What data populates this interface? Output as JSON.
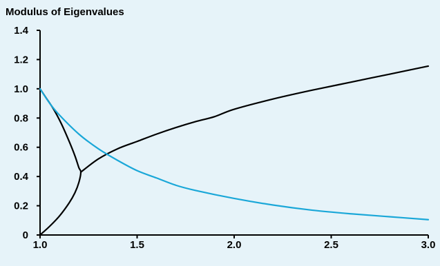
{
  "chart_data": {
    "type": "line",
    "title": "Modulus of Eigenvalues",
    "xlabel": "",
    "ylabel": "",
    "xlim": [
      1.0,
      3.0
    ],
    "ylim": [
      0,
      1.4
    ],
    "x_ticks": [
      1.0,
      1.5,
      2.0,
      2.5,
      3.0
    ],
    "x_tick_labels": [
      "1.0",
      "1.5",
      "2.0",
      "2.5",
      "3.0"
    ],
    "y_ticks": [
      0,
      0.2,
      0.4,
      0.6,
      0.8,
      1.0,
      1.2,
      1.4
    ],
    "y_tick_labels": [
      "0",
      "0.2",
      "0.4",
      "0.6",
      "0.8",
      "1.0",
      "1.2",
      "1.4"
    ],
    "grid": false,
    "background_color": "#e6f3f9",
    "series": [
      {
        "color": "#000000",
        "points": [
          [
            1.0,
            1.0
          ],
          [
            1.03,
            0.94
          ],
          [
            1.07,
            0.86
          ],
          [
            1.11,
            0.76
          ],
          [
            1.15,
            0.64
          ],
          [
            1.18,
            0.54
          ],
          [
            1.2,
            0.46
          ],
          [
            1.21,
            0.43
          ],
          [
            1.2,
            0.36
          ],
          [
            1.18,
            0.29
          ],
          [
            1.15,
            0.22
          ],
          [
            1.1,
            0.13
          ],
          [
            1.05,
            0.06
          ],
          [
            1.0,
            0.0
          ]
        ]
      },
      {
        "color": "#000000",
        "points": [
          [
            1.21,
            0.43
          ],
          [
            1.3,
            0.52
          ],
          [
            1.4,
            0.59
          ],
          [
            1.5,
            0.64
          ],
          [
            1.6,
            0.69
          ],
          [
            1.7,
            0.735
          ],
          [
            1.8,
            0.775
          ],
          [
            1.9,
            0.81
          ],
          [
            2.0,
            0.86
          ],
          [
            2.2,
            0.93
          ],
          [
            2.4,
            0.99
          ],
          [
            2.6,
            1.045
          ],
          [
            2.8,
            1.1
          ],
          [
            3.0,
            1.155
          ]
        ]
      },
      {
        "color": "#1aa7d8",
        "points": [
          [
            1.0,
            1.0
          ],
          [
            1.05,
            0.9
          ],
          [
            1.1,
            0.82
          ],
          [
            1.2,
            0.69
          ],
          [
            1.3,
            0.59
          ],
          [
            1.4,
            0.51
          ],
          [
            1.5,
            0.44
          ],
          [
            1.6,
            0.39
          ],
          [
            1.7,
            0.34
          ],
          [
            1.8,
            0.305
          ],
          [
            2.0,
            0.25
          ],
          [
            2.2,
            0.205
          ],
          [
            2.4,
            0.17
          ],
          [
            2.6,
            0.145
          ],
          [
            2.8,
            0.125
          ],
          [
            3.0,
            0.105
          ]
        ]
      }
    ]
  }
}
